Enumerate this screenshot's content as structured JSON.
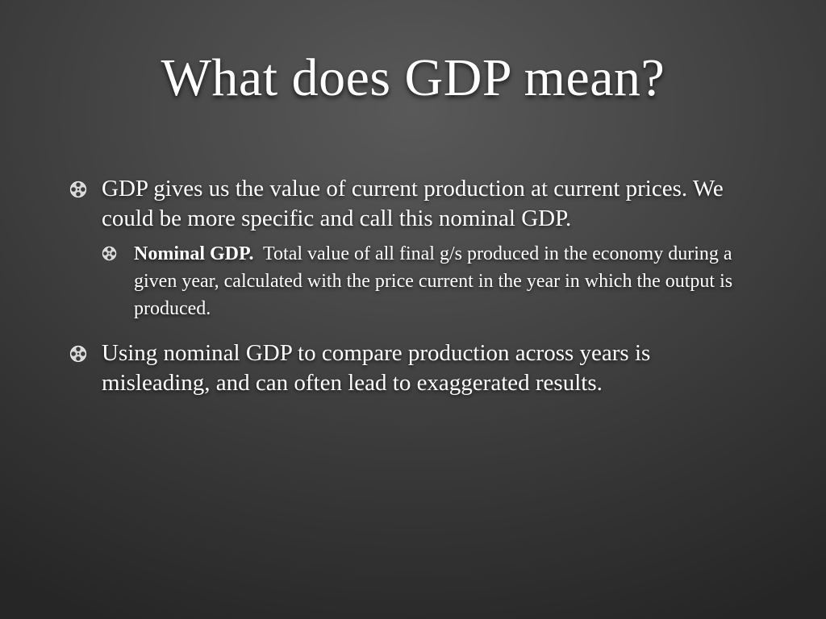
{
  "slide": {
    "title": "What does GDP mean?",
    "bullets": [
      {
        "text": "GDP gives us the value of current production at current prices.  We could be more specific and call this nominal GDP.",
        "sub_bullets": [
          {
            "lead": "Nominal GDP.",
            "text": "  Total value of all final g/s produced in the economy during a given year, calculated with the price current in the year in which the output is produced."
          }
        ]
      },
      {
        "text": "Using nominal GDP to compare production across years is misleading, and can often lead to exaggerated results."
      }
    ]
  },
  "colors": {
    "text": "#ffffff",
    "background_center": "#595959",
    "background_edge": "#262626"
  },
  "icons": {
    "bullet": "film-reel-icon"
  }
}
